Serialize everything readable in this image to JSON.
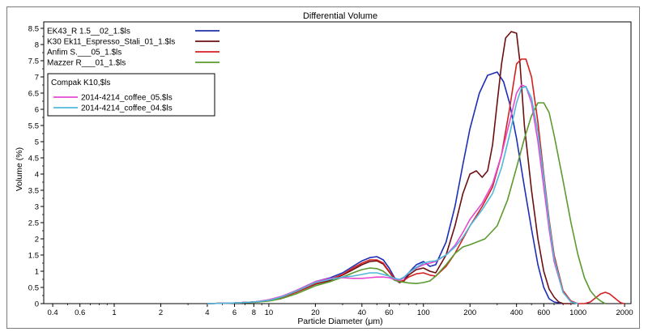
{
  "chart_data": {
    "type": "line",
    "title": "Differential Volume",
    "xlabel": "Particle Diameter (μm)",
    "ylabel": "Volume (%)",
    "x_scale": "log",
    "xlim": [
      0.35,
      2200
    ],
    "ylim": [
      0,
      8.7
    ],
    "x_ticks": [
      0.4,
      0.6,
      1,
      2,
      4,
      6,
      8,
      10,
      20,
      40,
      60,
      100,
      200,
      400,
      600,
      1000,
      2000
    ],
    "y_ticks": [
      0,
      0.5,
      1,
      1.5,
      2,
      2.5,
      3,
      3.5,
      4,
      4.5,
      5,
      5.5,
      6,
      6.5,
      7,
      7.5,
      8,
      8.5
    ],
    "grid": false,
    "legend_group_title": "Compak K10,$ls",
    "series": [
      {
        "name": "EK43_R 1.5__02_1.$ls",
        "color": "#1f2fb5",
        "x": [
          4,
          6,
          8,
          10,
          12,
          15,
          20,
          25,
          30,
          35,
          40,
          45,
          50,
          55,
          60,
          65,
          70,
          75,
          80,
          90,
          100,
          110,
          120,
          140,
          160,
          180,
          200,
          230,
          260,
          300,
          330,
          360,
          400,
          450,
          500,
          550,
          600,
          650,
          700,
          800
        ],
        "y": [
          0,
          0.02,
          0.05,
          0.1,
          0.2,
          0.4,
          0.68,
          0.8,
          0.95,
          1.15,
          1.32,
          1.42,
          1.45,
          1.35,
          1.1,
          0.8,
          0.65,
          0.72,
          0.95,
          1.2,
          1.3,
          1.15,
          1.2,
          1.9,
          3.0,
          4.3,
          5.4,
          6.5,
          7.05,
          7.15,
          6.85,
          6.2,
          5.1,
          3.6,
          2.3,
          1.2,
          0.5,
          0.15,
          0.05,
          0
        ]
      },
      {
        "name": "K30 Ek11_Espresso_Stali_01_1.$ls",
        "color": "#6b1010",
        "x": [
          4,
          6,
          8,
          10,
          12,
          15,
          20,
          25,
          30,
          35,
          40,
          45,
          50,
          55,
          60,
          65,
          70,
          75,
          80,
          90,
          100,
          110,
          120,
          140,
          160,
          180,
          200,
          220,
          240,
          260,
          280,
          300,
          320,
          340,
          370,
          400,
          420,
          450,
          500,
          550,
          600,
          650,
          700,
          750,
          800,
          900
        ],
        "y": [
          0,
          0.02,
          0.05,
          0.1,
          0.18,
          0.35,
          0.6,
          0.72,
          0.88,
          1.05,
          1.2,
          1.3,
          1.32,
          1.22,
          0.98,
          0.75,
          0.65,
          0.7,
          0.88,
          1.05,
          1.1,
          1.0,
          0.95,
          1.5,
          2.4,
          3.4,
          4.0,
          4.1,
          3.9,
          4.1,
          4.9,
          6.2,
          7.4,
          8.2,
          8.4,
          8.35,
          7.5,
          5.5,
          3.5,
          2.0,
          1.0,
          0.45,
          0.2,
          0.05,
          0,
          0
        ]
      },
      {
        "name": "Anfim S.___05_1.$ls",
        "color": "#d42020",
        "x": [
          4,
          6,
          8,
          10,
          12,
          15,
          20,
          25,
          30,
          35,
          40,
          45,
          50,
          55,
          60,
          65,
          70,
          75,
          80,
          90,
          100,
          110,
          120,
          140,
          160,
          180,
          200,
          240,
          280,
          320,
          360,
          400,
          430,
          460,
          500,
          550,
          600,
          650,
          700,
          800,
          900,
          1000,
          1100,
          1200,
          1300,
          1400,
          1500,
          1600,
          1700,
          1800,
          1900,
          2000
        ],
        "y": [
          0,
          0.02,
          0.05,
          0.1,
          0.18,
          0.35,
          0.62,
          0.75,
          0.9,
          1.1,
          1.25,
          1.35,
          1.35,
          1.25,
          1.0,
          0.78,
          0.68,
          0.72,
          0.82,
          0.92,
          0.95,
          0.88,
          0.85,
          1.15,
          1.55,
          2.0,
          2.4,
          3.0,
          3.6,
          4.6,
          6.0,
          7.4,
          7.55,
          7.55,
          7.0,
          5.6,
          4.0,
          2.6,
          1.5,
          0.4,
          0.08,
          0,
          0,
          0.05,
          0.18,
          0.3,
          0.35,
          0.3,
          0.2,
          0.1,
          0.02,
          0
        ]
      },
      {
        "name": "Mazzer R___01_1.$ls",
        "color": "#5a9a2e",
        "x": [
          4,
          6,
          8,
          10,
          12,
          15,
          20,
          25,
          30,
          35,
          40,
          45,
          50,
          55,
          60,
          65,
          70,
          75,
          80,
          90,
          100,
          110,
          120,
          140,
          160,
          180,
          200,
          250,
          300,
          350,
          400,
          450,
          500,
          550,
          600,
          650,
          700,
          800,
          900,
          1000,
          1100,
          1200,
          1300,
          1400,
          1500
        ],
        "y": [
          0,
          0.02,
          0.04,
          0.08,
          0.15,
          0.3,
          0.55,
          0.68,
          0.82,
          0.95,
          1.05,
          1.1,
          1.08,
          1.0,
          0.85,
          0.72,
          0.68,
          0.66,
          0.64,
          0.62,
          0.65,
          0.7,
          0.85,
          1.2,
          1.55,
          1.75,
          1.82,
          2.0,
          2.4,
          3.2,
          4.2,
          5.1,
          5.8,
          6.2,
          6.2,
          5.9,
          5.2,
          3.8,
          2.5,
          1.5,
          0.8,
          0.4,
          0.2,
          0.08,
          0
        ]
      },
      {
        "name": "2014-4214_coffee_05.$ls",
        "color": "#e64ad1",
        "group": "Compak K10,$ls",
        "x": [
          4,
          6,
          8,
          10,
          12,
          15,
          20,
          25,
          30,
          35,
          40,
          45,
          50,
          55,
          60,
          65,
          70,
          75,
          80,
          90,
          100,
          110,
          120,
          140,
          160,
          180,
          200,
          240,
          280,
          320,
          360,
          400,
          430,
          460,
          500,
          550,
          600,
          650,
          700,
          800,
          900,
          1000
        ],
        "y": [
          0,
          0.02,
          0.05,
          0.12,
          0.22,
          0.4,
          0.68,
          0.78,
          0.8,
          0.78,
          0.78,
          0.8,
          0.82,
          0.82,
          0.8,
          0.75,
          0.72,
          0.8,
          0.95,
          1.1,
          1.2,
          1.25,
          1.3,
          1.5,
          1.8,
          2.2,
          2.6,
          3.1,
          3.7,
          4.6,
          5.6,
          6.5,
          6.75,
          6.7,
          6.2,
          5.0,
          3.6,
          2.3,
          1.3,
          0.35,
          0.05,
          0
        ]
      },
      {
        "name": "2014-4214_coffee_04.$ls",
        "color": "#4fb8d8",
        "group": "Compak K10,$ls",
        "x": [
          4,
          6,
          8,
          10,
          12,
          15,
          20,
          25,
          30,
          35,
          40,
          45,
          50,
          55,
          60,
          65,
          70,
          75,
          80,
          90,
          100,
          110,
          120,
          140,
          160,
          180,
          200,
          240,
          280,
          320,
          360,
          400,
          430,
          460,
          500,
          550,
          600,
          650,
          700,
          800,
          900,
          1000
        ],
        "y": [
          0,
          0.02,
          0.05,
          0.1,
          0.2,
          0.38,
          0.65,
          0.75,
          0.82,
          0.85,
          0.9,
          0.95,
          0.95,
          0.9,
          0.85,
          0.78,
          0.75,
          0.82,
          0.95,
          1.12,
          1.25,
          1.3,
          1.32,
          1.5,
          1.75,
          2.05,
          2.4,
          2.9,
          3.4,
          4.2,
          5.2,
          6.2,
          6.65,
          6.7,
          6.35,
          5.3,
          3.9,
          2.5,
          1.4,
          0.35,
          0.05,
          0
        ]
      }
    ]
  }
}
